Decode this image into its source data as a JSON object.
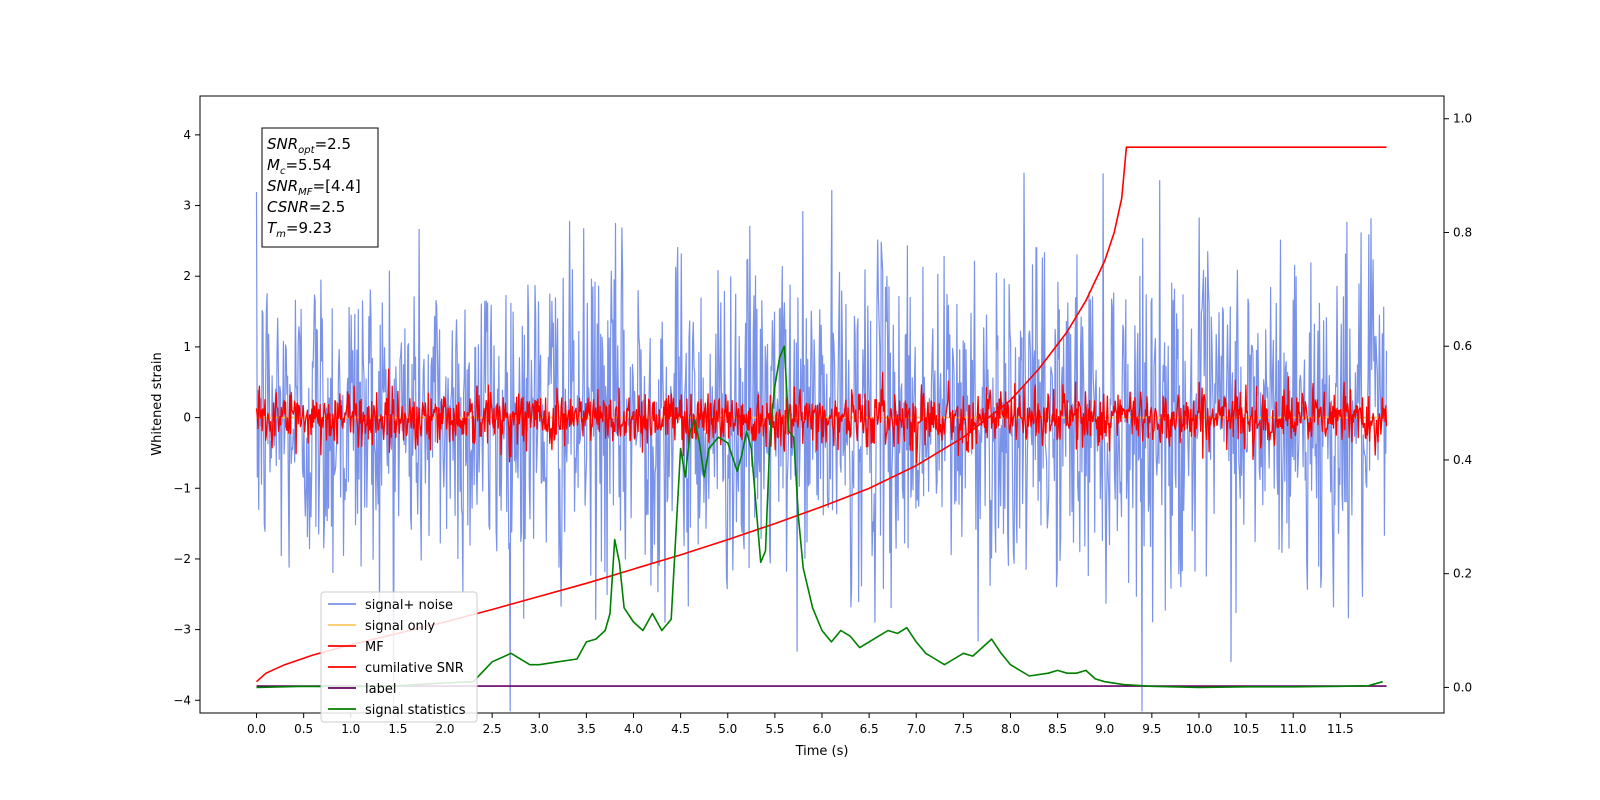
{
  "chart_data": {
    "type": "line",
    "xlabel": "Time (s)",
    "ylabel": "Whitened strain",
    "xlim": [
      -0.6,
      12.6
    ],
    "ylim": [
      -4.18,
      4.55
    ],
    "y2lim": [
      -0.045,
      1.04
    ],
    "x_ticks": [
      0.0,
      0.5,
      1.0,
      1.5,
      2.0,
      2.5,
      3.0,
      3.5,
      4.0,
      4.5,
      5.0,
      5.5,
      6.0,
      6.5,
      7.0,
      7.5,
      8.0,
      8.5,
      9.0,
      9.5,
      10.0,
      10.5,
      11.0,
      11.5
    ],
    "x_tick_labels": [
      "0.0",
      "0.5",
      "1.0",
      "1.5",
      "2.0",
      "2.5",
      "3.0",
      "3.5",
      "4.0",
      "4.5",
      "5.0",
      "5.5",
      "6.0",
      "6.5",
      "7.0",
      "7.5",
      "8.0",
      "8.5",
      "9.0",
      "9.5",
      "10.0",
      "10.5",
      "11.0",
      "11.5"
    ],
    "y_ticks": [
      -4,
      -3,
      -2,
      -1,
      0,
      1,
      2,
      3,
      4
    ],
    "y_tick_labels": [
      "−4",
      "−3",
      "−2",
      "−1",
      "0",
      "1",
      "2",
      "3",
      "4"
    ],
    "y2_ticks": [
      0.0,
      0.2,
      0.4,
      0.6,
      0.8,
      1.0
    ],
    "y2_tick_labels": [
      "0.0",
      "0.2",
      "0.4",
      "0.6",
      "0.8",
      "1.0"
    ],
    "annotation": {
      "lines": [
        {
          "base": "SNR",
          "sub": "opt",
          "rest": "=2.5"
        },
        {
          "base": "M",
          "sub": "c",
          "rest": "=5.54"
        },
        {
          "base": "SNR",
          "sub": "MF",
          "rest": "=[4.4]"
        },
        {
          "base": "CSNR",
          "sub": "",
          "rest": "=2.5"
        },
        {
          "base": "T",
          "sub": "m",
          "rest": "=9.23"
        }
      ]
    },
    "legend": {
      "position": "lower-left",
      "entries": [
        {
          "label": "signal+ noise",
          "color": "#7a93e8"
        },
        {
          "label": "signal only",
          "color": "#ffc766"
        },
        {
          "label": "MF",
          "color": "#ff0000"
        },
        {
          "label": "cumilative SNR",
          "color": "#ff0000"
        },
        {
          "label": "label",
          "color": "#660066"
        },
        {
          "label": "signal statistics",
          "color": "#008000"
        }
      ]
    },
    "series": [
      {
        "name": "signal+ noise",
        "axis": "left",
        "color": "#7a93e8",
        "kind": "noise",
        "x_range": [
          0.0,
          11.99
        ],
        "amplitude": 1.15,
        "peak": 4.15
      },
      {
        "name": "signal only",
        "axis": "left",
        "color": "#ffc766",
        "kind": "flat",
        "x": [
          0.0,
          11.99
        ],
        "y": [
          0.0,
          0.0
        ]
      },
      {
        "name": "MF",
        "axis": "left",
        "color": "#ff0000",
        "kind": "noise",
        "x_range": [
          0.0,
          11.99
        ],
        "amplitude": 0.2,
        "peak": 0.85
      },
      {
        "name": "cumilative SNR",
        "axis": "right",
        "color": "#ff0000",
        "kind": "line",
        "x": [
          0.0,
          0.1,
          0.3,
          0.6,
          1.0,
          1.5,
          2.0,
          2.5,
          3.0,
          3.5,
          4.0,
          4.5,
          5.0,
          5.5,
          6.0,
          6.5,
          7.0,
          7.5,
          8.0,
          8.3,
          8.6,
          8.8,
          9.0,
          9.1,
          9.18,
          9.23,
          10.0,
          11.0,
          11.99
        ],
        "y": [
          0.01,
          0.025,
          0.04,
          0.057,
          0.075,
          0.095,
          0.115,
          0.137,
          0.16,
          0.183,
          0.208,
          0.233,
          0.26,
          0.288,
          0.318,
          0.35,
          0.39,
          0.44,
          0.505,
          0.56,
          0.625,
          0.68,
          0.75,
          0.8,
          0.86,
          0.95,
          0.95,
          0.95,
          0.95
        ]
      },
      {
        "name": "label",
        "axis": "left",
        "color": "#660066",
        "kind": "line",
        "x": [
          0.0,
          11.99
        ],
        "y": [
          -3.8,
          -3.8
        ]
      },
      {
        "name": "signal statistics",
        "axis": "right",
        "color": "#008000",
        "kind": "line",
        "x": [
          0.0,
          0.5,
          1.0,
          1.5,
          2.0,
          2.3,
          2.5,
          2.7,
          2.9,
          3.0,
          3.2,
          3.4,
          3.5,
          3.6,
          3.7,
          3.75,
          3.8,
          3.85,
          3.9,
          4.0,
          4.1,
          4.2,
          4.3,
          4.4,
          4.5,
          4.55,
          4.6,
          4.65,
          4.7,
          4.75,
          4.8,
          4.9,
          5.0,
          5.1,
          5.15,
          5.2,
          5.25,
          5.3,
          5.35,
          5.4,
          5.45,
          5.5,
          5.55,
          5.6,
          5.65,
          5.7,
          5.75,
          5.8,
          5.9,
          6.0,
          6.1,
          6.2,
          6.3,
          6.4,
          6.5,
          6.6,
          6.7,
          6.8,
          6.9,
          7.0,
          7.1,
          7.2,
          7.3,
          7.4,
          7.5,
          7.6,
          7.7,
          7.8,
          7.9,
          8.0,
          8.2,
          8.4,
          8.5,
          8.6,
          8.7,
          8.8,
          8.9,
          9.0,
          9.2,
          9.5,
          10.0,
          10.5,
          11.0,
          11.5,
          11.8,
          11.95
        ],
        "y": [
          0.0,
          0.002,
          0.001,
          0.003,
          0.008,
          0.01,
          0.045,
          0.06,
          0.04,
          0.04,
          0.045,
          0.05,
          0.08,
          0.085,
          0.1,
          0.13,
          0.26,
          0.22,
          0.14,
          0.115,
          0.1,
          0.13,
          0.1,
          0.12,
          0.42,
          0.37,
          0.45,
          0.47,
          0.43,
          0.37,
          0.42,
          0.44,
          0.43,
          0.38,
          0.41,
          0.45,
          0.42,
          0.32,
          0.22,
          0.24,
          0.45,
          0.53,
          0.58,
          0.6,
          0.45,
          0.44,
          0.3,
          0.21,
          0.14,
          0.1,
          0.08,
          0.1,
          0.09,
          0.07,
          0.08,
          0.09,
          0.1,
          0.095,
          0.105,
          0.08,
          0.06,
          0.05,
          0.04,
          0.05,
          0.06,
          0.055,
          0.07,
          0.085,
          0.06,
          0.04,
          0.02,
          0.025,
          0.03,
          0.025,
          0.025,
          0.03,
          0.015,
          0.01,
          0.005,
          0.002,
          0.0,
          0.001,
          0.001,
          0.002,
          0.003,
          0.01
        ]
      }
    ]
  }
}
